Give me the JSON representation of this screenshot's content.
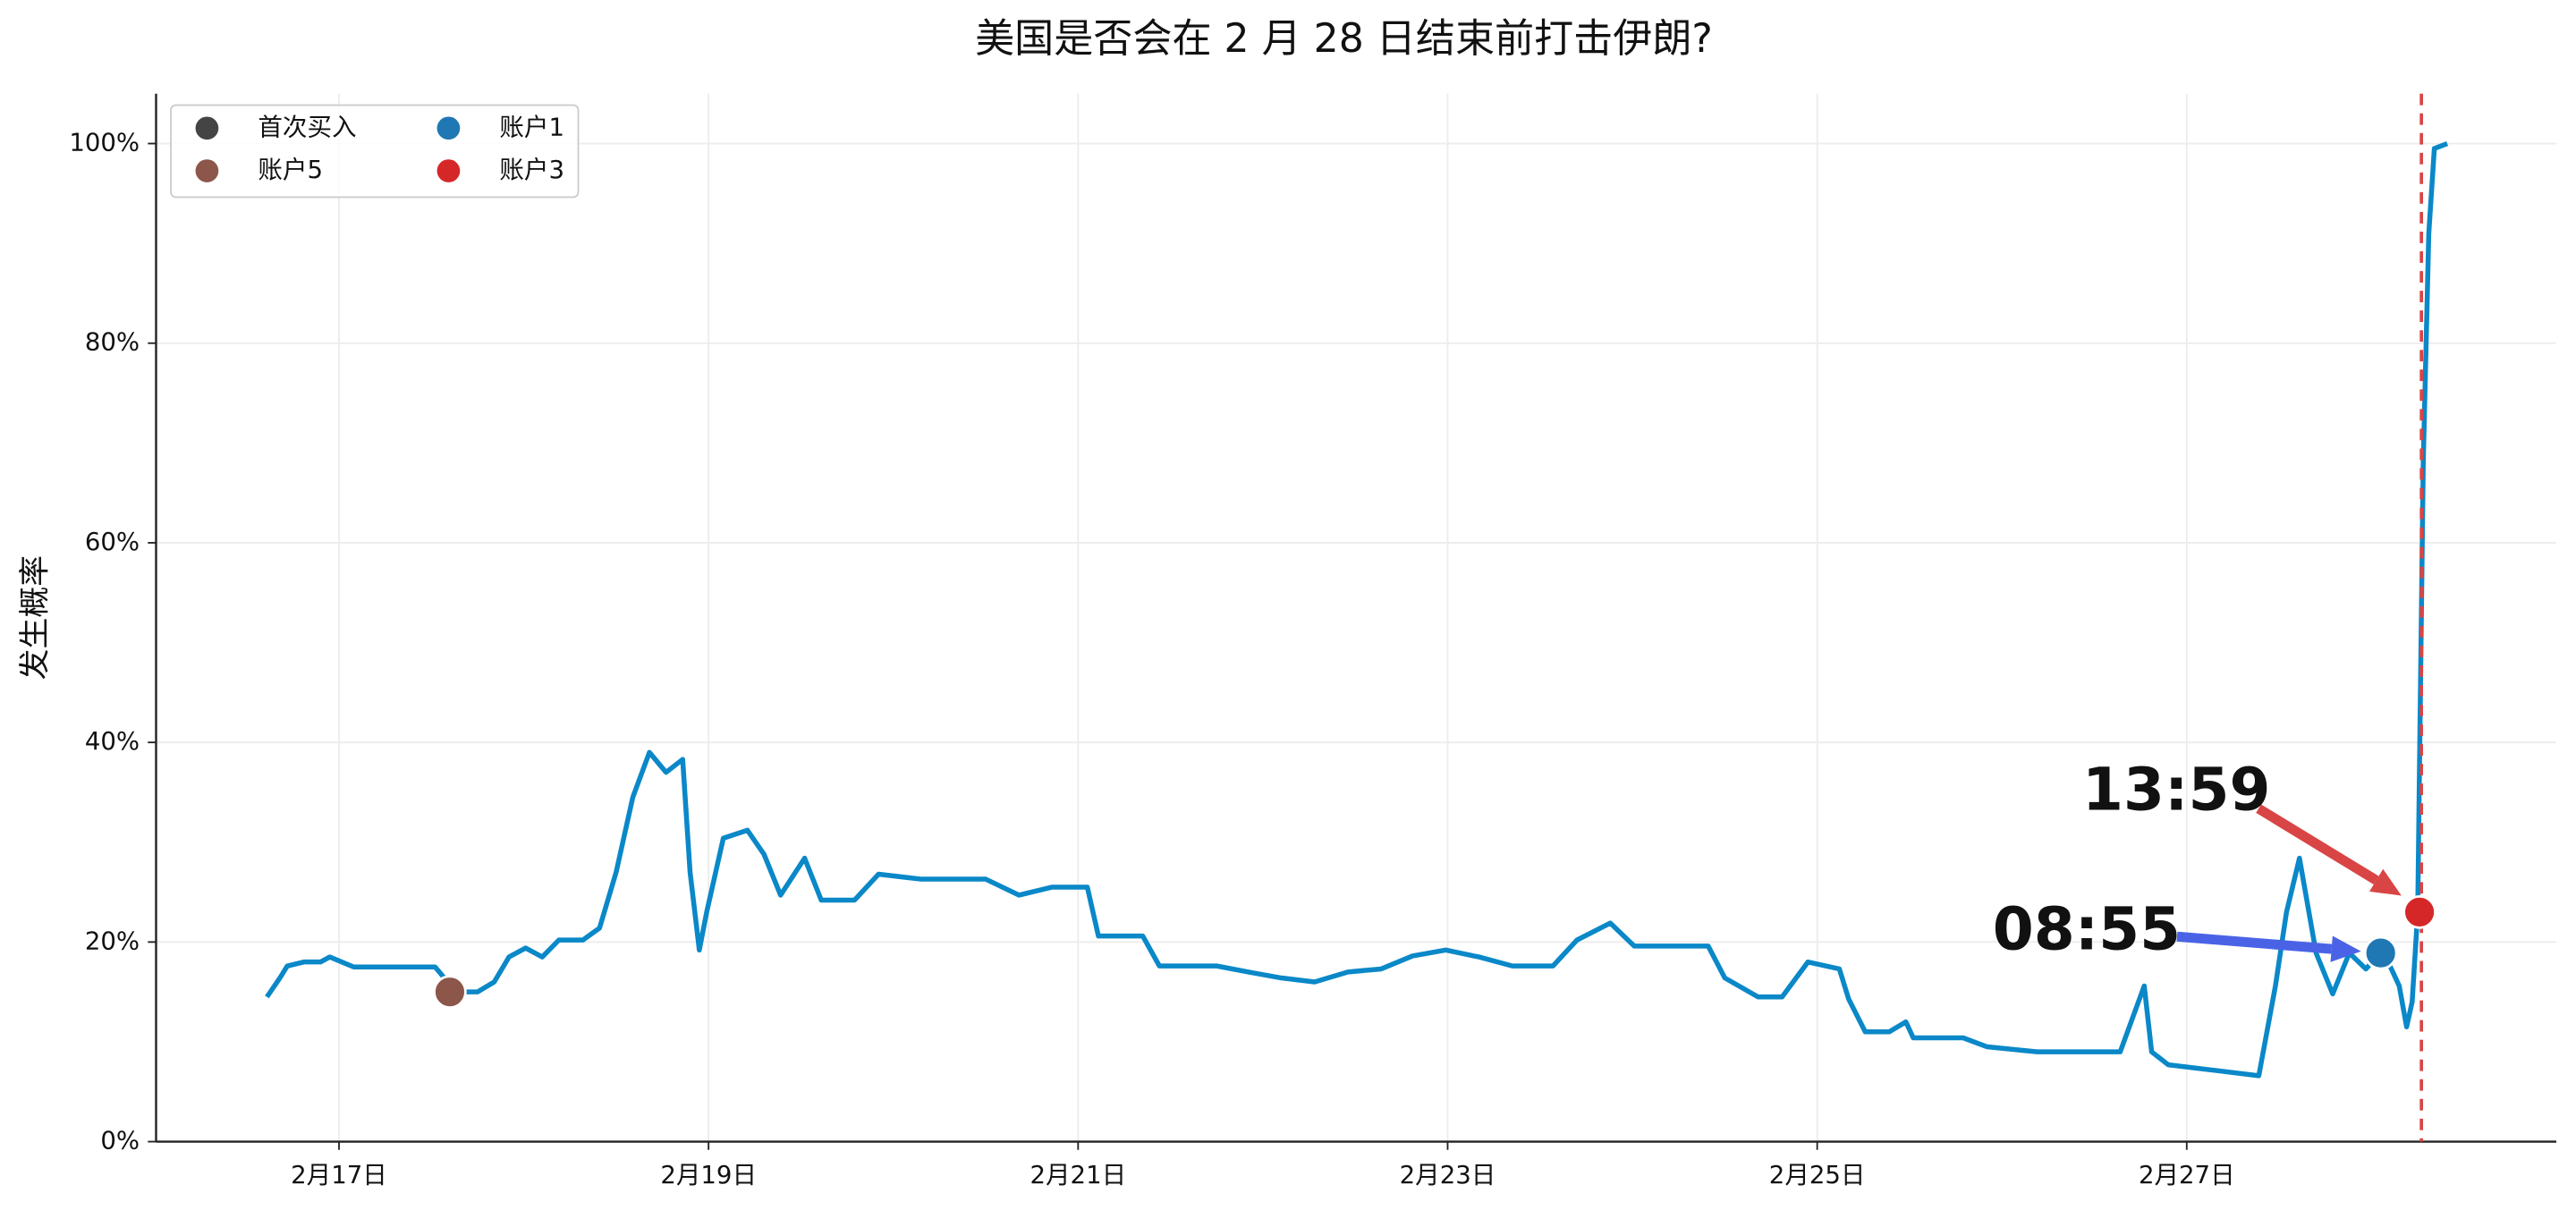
{
  "chart_data": {
    "type": "line",
    "title": "美国是否会在 2 月 28 日结束前打击伊朗?",
    "y_label": "发生概率",
    "xlim": [
      16.01,
      29.0
    ],
    "ylim": [
      0,
      105
    ],
    "xticks": [
      {
        "value": 17,
        "label": "2月17日"
      },
      {
        "value": 19,
        "label": "2月19日"
      },
      {
        "value": 21,
        "label": "2月21日"
      },
      {
        "value": 23,
        "label": "2月23日"
      },
      {
        "value": 25,
        "label": "2月25日"
      },
      {
        "value": 27,
        "label": "2月27日"
      }
    ],
    "yticks": [
      {
        "value": 0,
        "label": "0%"
      },
      {
        "value": 20,
        "label": "20%"
      },
      {
        "value": 40,
        "label": "40%"
      },
      {
        "value": 60,
        "label": "60%"
      },
      {
        "value": 80,
        "label": "80%"
      },
      {
        "value": 100,
        "label": "100%"
      }
    ],
    "grid": true,
    "legend": "upper left",
    "legend_columns": 2,
    "series": [
      {
        "color": "#0a88c8",
        "x": [
          16.61,
          16.68,
          16.72,
          16.81,
          16.9,
          16.95,
          17.08,
          17.3,
          17.52,
          17.57,
          17.66,
          17.75,
          17.84,
          17.92,
          18.01,
          18.1,
          18.19,
          18.32,
          18.41,
          18.5,
          18.59,
          18.68,
          18.77,
          18.86,
          18.9,
          18.95,
          18.99,
          19.08,
          19.21,
          19.3,
          19.39,
          19.52,
          19.61,
          19.79,
          19.92,
          20.15,
          20.5,
          20.68,
          20.86,
          21.05,
          21.11,
          21.35,
          21.44,
          21.75,
          21.92,
          22.1,
          22.28,
          22.46,
          22.64,
          22.81,
          22.99,
          23.17,
          23.35,
          23.57,
          23.7,
          23.88,
          24.01,
          24.41,
          24.5,
          24.68,
          24.81,
          24.95,
          25.12,
          25.17,
          25.26,
          25.39,
          25.48,
          25.52,
          25.79,
          25.92,
          26.19,
          26.64,
          26.77,
          26.81,
          26.9,
          27.17,
          27.39,
          27.48,
          27.54,
          27.61,
          27.7,
          27.79,
          27.88,
          27.97,
          28.06,
          28.15,
          28.19,
          28.22,
          28.25,
          28.28,
          28.31,
          28.34,
          28.41
        ],
        "values": [
          14.5,
          16.4,
          17.6,
          18,
          18,
          18.5,
          17.5,
          17.5,
          17.5,
          16.4,
          15,
          15,
          16,
          18.5,
          19.4,
          18.5,
          20.2,
          20.2,
          21.4,
          27,
          34.5,
          39,
          37,
          38.3,
          27,
          19.2,
          23,
          30.4,
          31.2,
          28.8,
          24.7,
          28.4,
          24.2,
          24.2,
          26.8,
          26.3,
          26.3,
          24.7,
          25.5,
          25.5,
          20.6,
          20.6,
          17.6,
          17.6,
          17,
          16.4,
          16,
          17,
          17.3,
          18.6,
          19.2,
          18.5,
          17.6,
          17.6,
          20.2,
          21.9,
          19.6,
          19.6,
          16.4,
          14.5,
          14.5,
          18,
          17.3,
          14.3,
          11,
          11,
          12,
          10.4,
          10.4,
          9.5,
          9,
          9,
          15.6,
          9,
          7.7,
          7.1,
          6.6,
          15.6,
          23,
          28.4,
          18.9,
          14.8,
          18.9,
          17.3,
          19.2,
          15.6,
          11.5,
          14,
          23,
          68,
          91,
          99.5,
          100
        ]
      }
    ],
    "markers": [
      {
        "name": "首次买入",
        "color": "#444444",
        "x": [],
        "values": []
      },
      {
        "name": "账户5",
        "color": "#8c564b",
        "x": [
          17.6
        ],
        "values": [
          15
        ]
      },
      {
        "name": "账户1",
        "color": "#1f77b4",
        "x": [
          28.05
        ],
        "values": [
          18.9
        ],
        "annotation": "08:55",
        "annotation_color": "#4a63e6"
      },
      {
        "name": "账户3",
        "color": "#d62728",
        "x": [
          28.26
        ],
        "values": [
          23
        ],
        "annotation": "13:59",
        "annotation_color": "#d94545"
      }
    ],
    "vline": {
      "x": 28.27,
      "color": "#d94545"
    }
  }
}
